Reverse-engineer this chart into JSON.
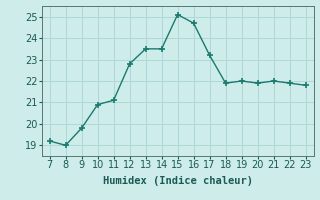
{
  "x": [
    7,
    8,
    9,
    10,
    11,
    12,
    13,
    14,
    15,
    16,
    17,
    18,
    19,
    20,
    21,
    22,
    23
  ],
  "y": [
    19.2,
    19.0,
    19.8,
    20.9,
    21.1,
    22.8,
    23.5,
    23.5,
    25.1,
    24.7,
    23.2,
    21.9,
    22.0,
    21.9,
    22.0,
    21.9,
    21.8
  ],
  "line_color": "#1a7a6e",
  "marker": "+",
  "marker_size": 4,
  "background_color": "#ceecea",
  "grid_color": "#aed8d4",
  "xlabel": "Humidex (Indice chaleur)",
  "ylim": [
    18.5,
    25.5
  ],
  "xlim": [
    6.5,
    23.5
  ],
  "yticks": [
    19,
    20,
    21,
    22,
    23,
    24,
    25
  ],
  "xticks": [
    7,
    8,
    9,
    10,
    11,
    12,
    13,
    14,
    15,
    16,
    17,
    18,
    19,
    20,
    21,
    22,
    23
  ],
  "xlabel_fontsize": 7.5,
  "tick_fontsize": 7
}
